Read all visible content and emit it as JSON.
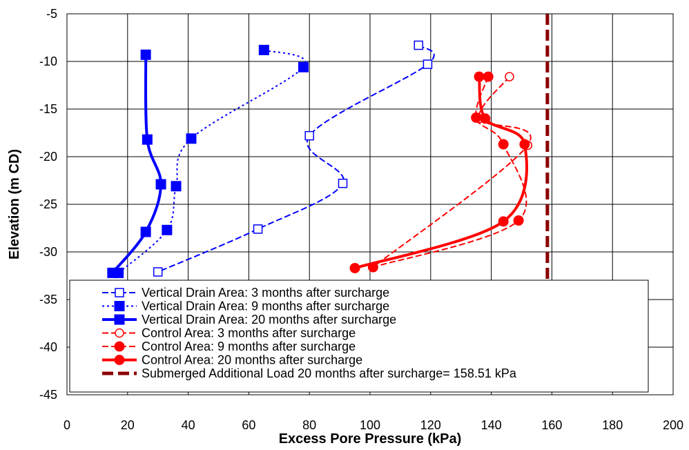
{
  "chart_data": {
    "type": "line",
    "xlabel": "Excess Pore Pressure (kPa)",
    "ylabel": "Elevation (m CD)",
    "xlim": [
      0,
      200
    ],
    "ylim": [
      -45,
      -5
    ],
    "xticks": [
      0,
      20,
      40,
      60,
      80,
      100,
      120,
      140,
      160,
      180,
      200
    ],
    "yticks": [
      -5,
      -10,
      -15,
      -20,
      -25,
      -30,
      -35,
      -40,
      -45
    ],
    "grid": true,
    "legend_position": "bottom",
    "series": [
      {
        "name": "Vertical Drain Area: 3 months after surcharge",
        "color": "#0000ff",
        "dash": "dashed",
        "marker": "square-open",
        "lineWidth": 2,
        "x": [
          116,
          119,
          80,
          91,
          63,
          30
        ],
        "y": [
          -8.3,
          -10.3,
          -17.8,
          -22.8,
          -27.6,
          -32.1
        ]
      },
      {
        "name": "Vertical Drain Area: 9 months after surcharge",
        "color": "#0000ff",
        "dash": "dotted",
        "marker": "square-filled",
        "lineWidth": 2,
        "x": [
          65,
          78,
          41,
          36,
          33,
          17
        ],
        "y": [
          -8.8,
          -10.6,
          -18.1,
          -23.1,
          -27.7,
          -32.2
        ]
      },
      {
        "name": "Vertical Drain Area: 20 months after surcharge",
        "color": "#0000ff",
        "dash": "solid",
        "marker": "square-filled",
        "lineWidth": 4,
        "x": [
          26,
          26.5,
          31,
          26,
          15
        ],
        "y": [
          -9.3,
          -18.2,
          -22.9,
          -27.9,
          -32.2
        ]
      },
      {
        "name": "Control Area: 3 months after surcharge",
        "color": "#ff0000",
        "dash": "dashed",
        "marker": "circle-open",
        "lineWidth": 2,
        "x": [
          146,
          136,
          152,
          101
        ],
        "y": [
          -11.6,
          -16,
          -18.8,
          -31.6
        ]
      },
      {
        "name": "Control Area: 9 months after surcharge",
        "color": "#ff0000",
        "dash": "dashed",
        "marker": "circle-filled",
        "lineWidth": 2,
        "x": [
          139,
          135,
          144,
          149,
          101
        ],
        "y": [
          -11.6,
          -15.9,
          -18.7,
          -26.7,
          -31.6
        ]
      },
      {
        "name": "Control Area: 20 months after surcharge",
        "color": "#ff0000",
        "dash": "solid",
        "marker": "circle-filled",
        "lineWidth": 4,
        "x": [
          136,
          138,
          151,
          144,
          95
        ],
        "y": [
          -11.6,
          -16,
          -18.7,
          -26.8,
          -31.7
        ]
      },
      {
        "name": "Submerged Additional Load 20 months after surcharge= 158.51 kPa",
        "color": "#8b0000",
        "dash": "longdash",
        "marker": "none",
        "lineWidth": 5,
        "x": [
          158.51,
          158.51
        ],
        "y": [
          -5,
          -45
        ]
      }
    ]
  }
}
